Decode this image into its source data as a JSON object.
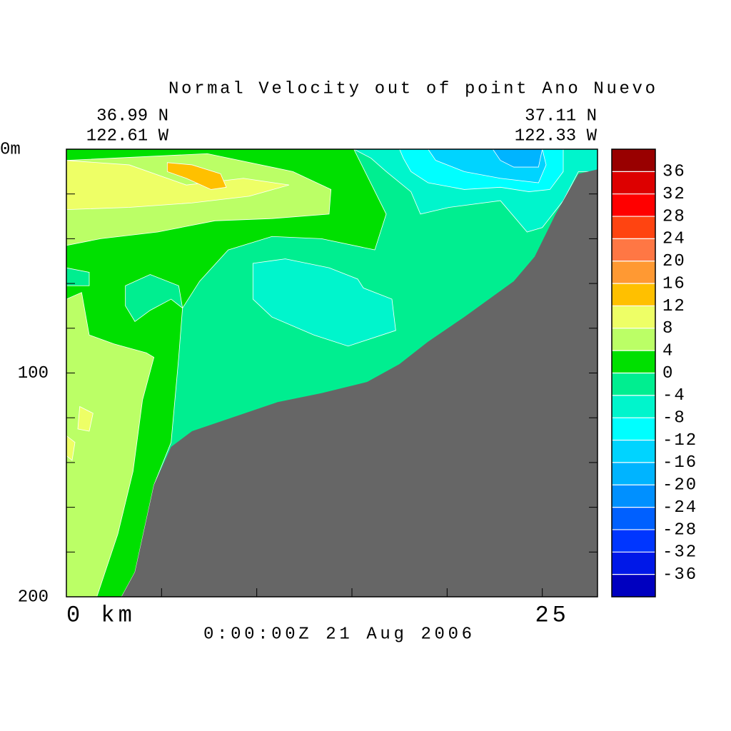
{
  "chart_data": {
    "type": "contour",
    "title": "Normal Velocity out of point Ano Nuevo",
    "start_location": [
      "36.99 N",
      "122.61 W"
    ],
    "end_location": [
      "37.11 N",
      "122.33 W"
    ],
    "timestamp": "0:00:00Z  21 Aug 2006",
    "xlim": [
      0,
      27.9
    ],
    "xticks": [
      {
        "value": 0,
        "label": "0 km"
      },
      25
    ],
    "xminorticks": [
      5,
      10,
      15,
      20
    ],
    "ylim": [
      0,
      200
    ],
    "y_inverted": true,
    "yticks": [
      {
        "value": 0,
        "label": "0m"
      },
      100,
      200
    ],
    "yminorticks": [
      20,
      40,
      60,
      80,
      120,
      140,
      160,
      180
    ],
    "colorbar": {
      "levels": [
        -40,
        -36,
        -32,
        -28,
        -24,
        -20,
        -16,
        -12,
        -8,
        -4,
        0,
        4,
        8,
        12,
        16,
        20,
        24,
        28,
        32,
        36,
        40
      ],
      "colors": [
        "#0000c0",
        "#0018e8",
        "#0036ff",
        "#0060ff",
        "#0090ff",
        "#00b4ff",
        "#00d4ff",
        "#00ffff",
        "#00f5cc",
        "#00ee90",
        "#00e000",
        "#bbff66",
        "#eeff66",
        "#ffc000",
        "#ff9933",
        "#ff7744",
        "#ff4411",
        "#ff0000",
        "#dd0000",
        "#990000"
      ],
      "ticks": [
        -36,
        -32,
        -28,
        -24,
        -20,
        -16,
        -12,
        -8,
        -4,
        0,
        4,
        8,
        12,
        16,
        20,
        24,
        28,
        32,
        36
      ]
    },
    "regions": [
      {
        "level": -4,
        "x": [
          0,
          27.9,
          27.9,
          0
        ],
        "y": [
          0,
          0,
          200,
          200
        ]
      },
      {
        "level": 0,
        "x": [
          0,
          15.1,
          16.8,
          16.2,
          13.4,
          10.8,
          8.5,
          7.0,
          6.1,
          5.9,
          5.5,
          4.6,
          3.6,
          2.9,
          0
        ],
        "y": [
          0,
          0,
          29,
          45,
          40,
          39,
          45,
          59,
          71,
          93,
          131,
          150,
          189,
          200,
          200
        ]
      },
      {
        "level": -4,
        "x": [
          3.1,
          4.4,
          5.9,
          6.1,
          5.5,
          4.4,
          3.6,
          3.1
        ],
        "y": [
          61,
          56,
          61,
          71,
          67,
          72,
          77,
          70
        ]
      },
      {
        "level": -4,
        "x": [
          0,
          1.2,
          1.2,
          0
        ],
        "y": [
          53,
          55,
          61,
          61
        ]
      },
      {
        "level": 4,
        "x": [
          0,
          7.4,
          11.9,
          13.9,
          13.8,
          10.8,
          7.8,
          4.8,
          1.8,
          0
        ],
        "y": [
          5,
          2,
          10,
          18,
          29,
          31,
          32,
          37,
          40,
          43
        ]
      },
      {
        "level": 4,
        "x": [
          0,
          0.8,
          1.2,
          2.5,
          4.2,
          4.6,
          4.0,
          3.5,
          2.7,
          1.6,
          0
        ],
        "y": [
          67,
          64,
          83,
          87,
          91,
          93,
          112,
          144,
          172,
          200,
          200
        ]
      },
      {
        "level": 8,
        "x": [
          0,
          3.3,
          6.3,
          9.3,
          11.7,
          9.6,
          6.6,
          3.3,
          0
        ],
        "y": [
          5,
          7,
          16,
          13,
          16,
          21,
          24,
          26,
          27
        ]
      },
      {
        "level": 8,
        "x": [
          0.7,
          1.4,
          1.2,
          0.6
        ],
        "y": [
          115,
          118,
          126,
          125
        ]
      },
      {
        "level": 8,
        "x": [
          0,
          0.45,
          0.3,
          0
        ],
        "y": [
          128,
          131,
          139,
          137
        ]
      },
      {
        "level": 12,
        "x": [
          5.3,
          6.6,
          8.1,
          8.4,
          7.6,
          6.3,
          5.3
        ],
        "y": [
          6,
          7,
          11,
          17,
          18,
          13,
          10
        ]
      },
      {
        "level": -8,
        "x": [
          15.1,
          27.9,
          27.9,
          26.9,
          26.1,
          25.0,
          24.2,
          22.8,
          20.1,
          18.6,
          18.1,
          16.8,
          16.0
        ],
        "y": [
          0,
          0,
          10,
          10,
          23,
          35,
          37,
          23,
          26,
          29,
          19,
          10,
          4
        ]
      },
      {
        "level": -8,
        "x": [
          9.8,
          11.5,
          13.8,
          15.3,
          15.6,
          17.1,
          17.3,
          14.8,
          13.0,
          10.8,
          9.8
        ],
        "y": [
          51,
          49,
          53,
          58,
          62,
          67,
          81,
          88,
          83,
          75,
          67
        ]
      },
      {
        "level": -12,
        "x": [
          17.5,
          26.1,
          26.1,
          25.4,
          24.3,
          22.8,
          20.9,
          19.0,
          18.1,
          17.7
        ],
        "y": [
          0,
          0,
          10,
          18,
          19,
          17,
          18,
          15,
          10,
          4
        ]
      },
      {
        "level": -16,
        "x": [
          19.0,
          25.0,
          25.2,
          24.8,
          22.8,
          20.9,
          19.4
        ],
        "y": [
          0,
          0,
          7,
          15,
          13,
          10,
          5
        ]
      },
      {
        "level": -20,
        "x": [
          22.4,
          25.0,
          24.8,
          23.5,
          22.8
        ],
        "y": [
          0,
          0,
          8,
          8,
          5
        ]
      }
    ],
    "terrain": {
      "color": "#666666",
      "x": [
        2.9,
        3.6,
        4.6,
        5.5,
        6.6,
        11.1,
        13.4,
        15.8,
        17.5,
        19.0,
        20.9,
        23.5,
        24.6,
        25.7,
        26.9,
        27.9,
        27.9
      ],
      "y": [
        200,
        189,
        150,
        133,
        126,
        113,
        109,
        104,
        96,
        86,
        75,
        59,
        48,
        29,
        11,
        9,
        200
      ]
    }
  }
}
